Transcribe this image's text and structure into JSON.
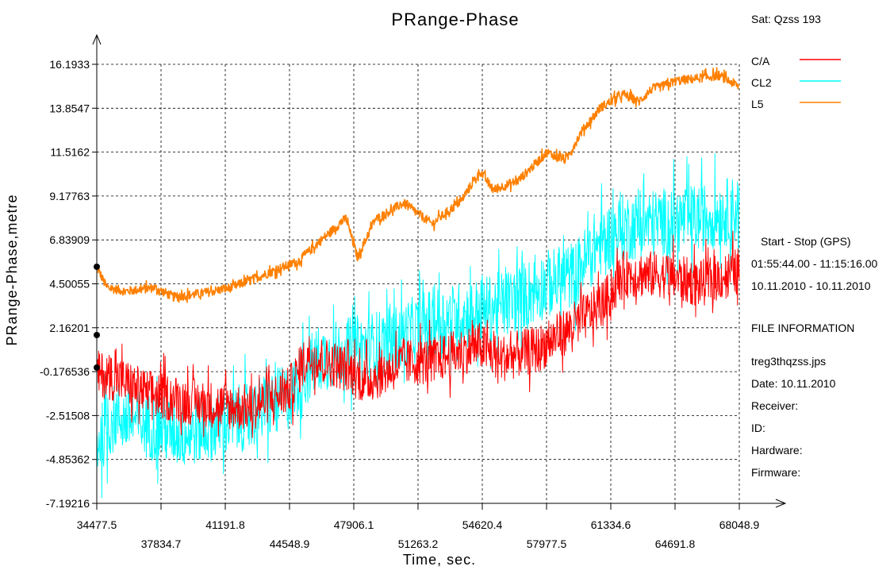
{
  "chart_data": {
    "type": "line",
    "title": "PRange-Phase",
    "xlabel": "Time, sec.",
    "ylabel": "PRange-Phase,metre",
    "xlim": [
      34477.5,
      68048.9
    ],
    "ylim": [
      -7.19216,
      16.1933
    ],
    "x_ticks": [
      "34477.5",
      "37834.7",
      "41191.8",
      "44548.9",
      "47906.1",
      "51263.2",
      "54620.4",
      "57977.5",
      "61334.6",
      "64691.8",
      "68048.9"
    ],
    "y_ticks": [
      "16.1933",
      "13.8547",
      "11.5162",
      "9.17763",
      "6.83909",
      "4.50055",
      "2.16201",
      "-0.176536",
      "-2.51508",
      "-4.85362",
      "-7.19216"
    ],
    "grid": true,
    "legend_position": "top-right",
    "series": [
      {
        "name": "C/A",
        "color": "#ff0000",
        "noise": 1.8,
        "x": [
          34477.5,
          35500,
          37000,
          39000,
          41000,
          42500,
          44500,
          45500,
          47500,
          48500,
          50500,
          52000,
          54500,
          55500,
          57500,
          59000,
          61000,
          62000,
          64000,
          66000,
          68048.9
        ],
        "y": [
          -0.3,
          -0.5,
          -1.3,
          -1.7,
          -2.0,
          -2.1,
          -1.2,
          0.7,
          0.0,
          -0.7,
          0.3,
          0.4,
          1.2,
          0.5,
          1.0,
          2.0,
          3.5,
          5.0,
          5.0,
          4.5,
          5.2
        ]
      },
      {
        "name": "CL2",
        "color": "#00ffff",
        "noise": 2.6,
        "x": [
          34477.5,
          35500,
          37000,
          39000,
          41000,
          42500,
          44500,
          46000,
          48000,
          50000,
          52000,
          54500,
          56000,
          58000,
          59500,
          60500,
          62000,
          64000,
          66000,
          68048.9
        ],
        "y": [
          -4.0,
          -2.5,
          -3.0,
          -3.5,
          -3.0,
          -2.5,
          -1.5,
          0.5,
          1.0,
          1.5,
          2.5,
          3.0,
          3.5,
          4.5,
          5.0,
          6.5,
          7.5,
          7.8,
          8.0,
          8.5
        ]
      },
      {
        "name": "L5",
        "color": "#ff8000",
        "noise": 0.35,
        "x": [
          34477.5,
          35000,
          36000,
          37500,
          38500,
          40000,
          41500,
          43000,
          45000,
          46500,
          47500,
          48100,
          49000,
          50500,
          52000,
          53500,
          54500,
          55200,
          56500,
          58000,
          59000,
          59800,
          60800,
          62000,
          62800,
          63500,
          64000,
          64700,
          65500,
          67000,
          68048.9
        ],
        "y": [
          5.4,
          4.3,
          4.1,
          4.3,
          3.8,
          4.0,
          4.3,
          4.9,
          5.7,
          7.1,
          8.0,
          5.9,
          7.9,
          8.8,
          7.7,
          8.9,
          10.5,
          9.5,
          10.0,
          11.5,
          11.1,
          12.6,
          13.9,
          14.6,
          14.2,
          14.9,
          15.0,
          15.3,
          15.4,
          15.6,
          15.0
        ]
      }
    ]
  },
  "side_info": {
    "sat": "Sat: Qzss  193",
    "start_stop": "Start  -  Stop  (GPS)",
    "time_range": "01:55:44.00 - 11:15:16.00",
    "date_range": "10.11.2010 - 10.11.2010",
    "file_info_heading": "FILE INFORMATION",
    "file_name": "treg3thqzss.jps",
    "date": "Date: 10.11.2010",
    "receiver": "Receiver:",
    "id": "ID:",
    "hardware": "Hardware:",
    "firmware": "Firmware:"
  }
}
